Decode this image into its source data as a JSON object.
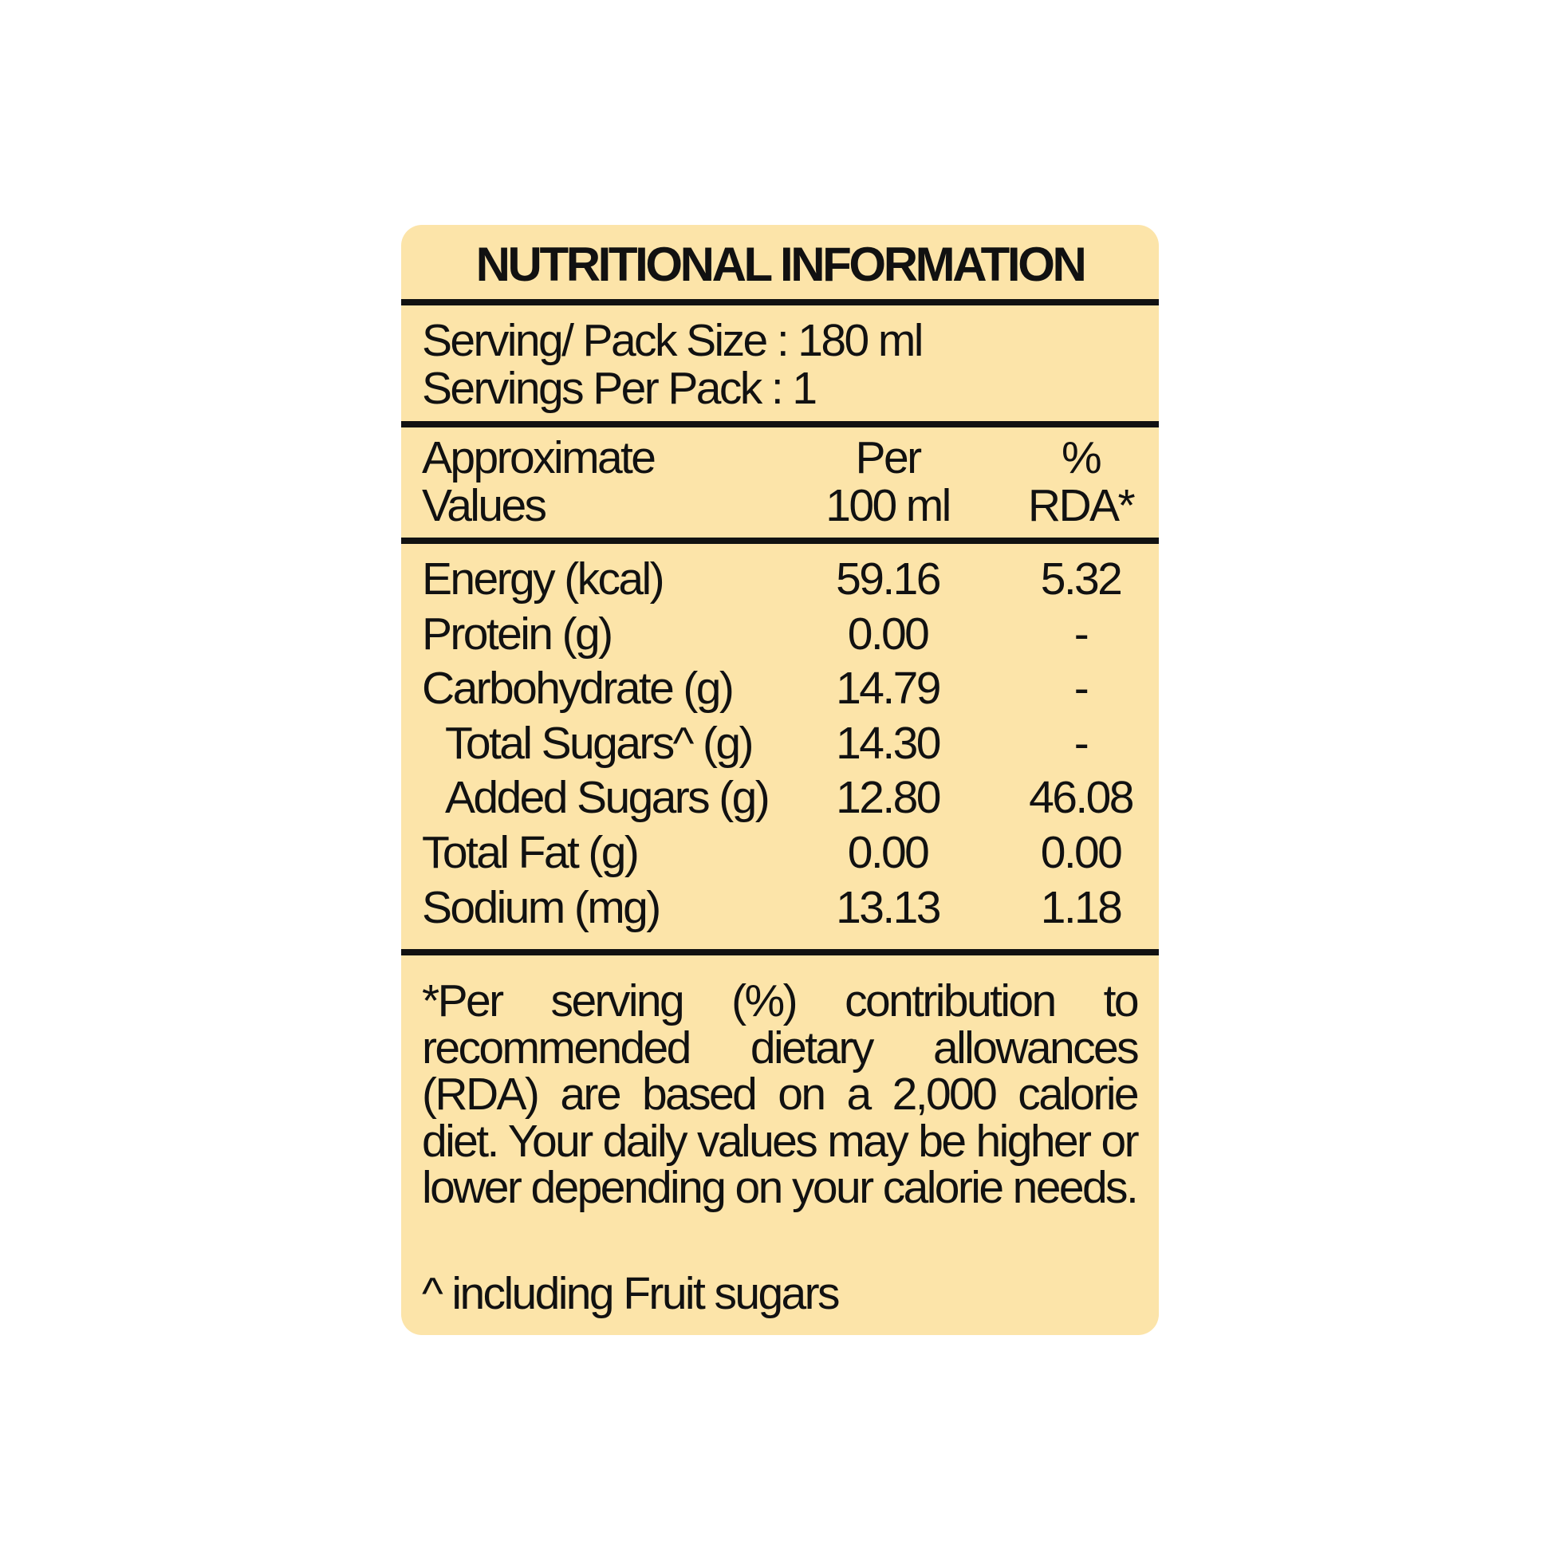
{
  "title": "NUTRITIONAL INFORMATION",
  "serving": {
    "pack_size": "Serving/ Pack Size : 180 ml",
    "servings_per_pack": "Servings Per Pack : 1"
  },
  "header": {
    "col1": [
      "Approximate",
      "Values"
    ],
    "col2": [
      "Per",
      "100 ml"
    ],
    "col3": [
      "%",
      "RDA*"
    ]
  },
  "rows": [
    {
      "label": "Energy (kcal)",
      "per100": "59.16",
      "rda": "5.32",
      "indent": false
    },
    {
      "label": "Protein (g)",
      "per100": "0.00",
      "rda": "-",
      "indent": false
    },
    {
      "label": "Carbohydrate (g)",
      "per100": "14.79",
      "rda": "-",
      "indent": false
    },
    {
      "label": "Total Sugars^ (g)",
      "per100": "14.30",
      "rda": "-",
      "indent": true
    },
    {
      "label": "Added Sugars (g)",
      "per100": "12.80",
      "rda": "46.08",
      "indent": true
    },
    {
      "label": "Total Fat (g)",
      "per100": "0.00",
      "rda": "0.00",
      "indent": false
    },
    {
      "label": "Sodium (mg)",
      "per100": "13.13",
      "rda": "1.18",
      "indent": false
    }
  ],
  "footnote_lines": [
    "*Per serving (%) contribution to",
    "recommended dietary allowances",
    "(RDA) are based on a 2,000 calorie",
    "diet. Your daily values may be higher or",
    "lower depending on your calorie needs."
  ],
  "footnote_sugar": "^ including Fruit sugars",
  "colors": {
    "card_background": "#FCE4A9",
    "text": "#111111"
  }
}
